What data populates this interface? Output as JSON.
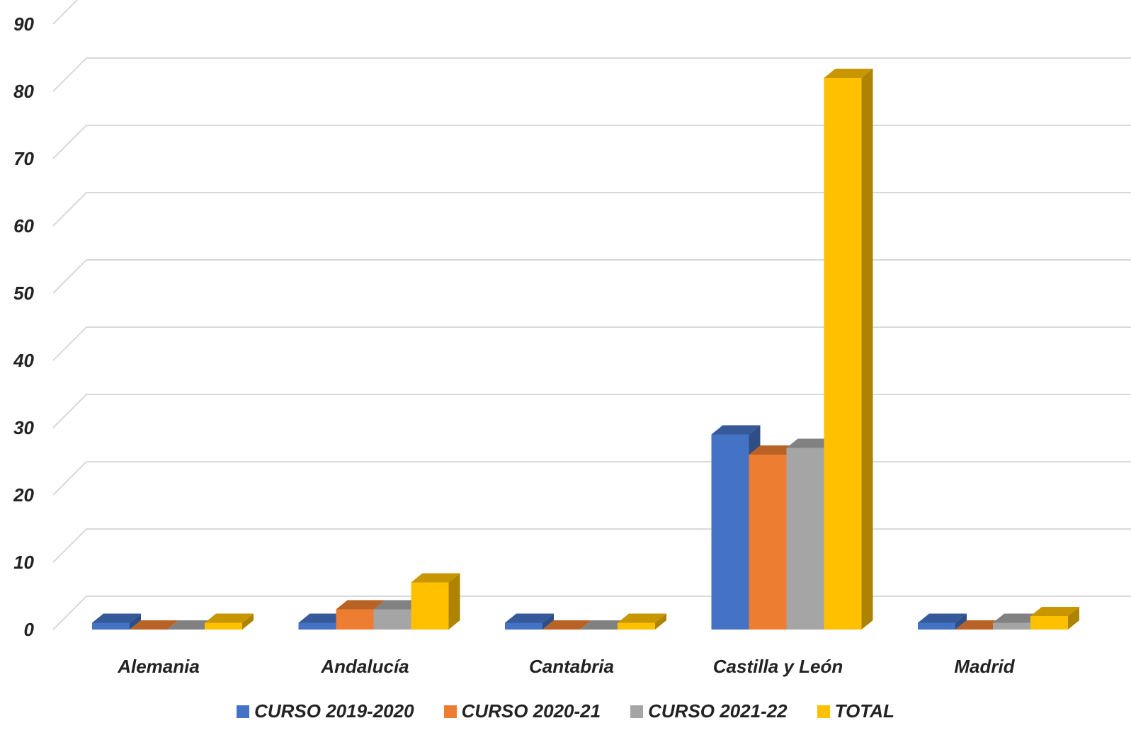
{
  "chart_data": {
    "type": "bar",
    "variant": "3d-clustered-column",
    "title": "",
    "xlabel": "",
    "ylabel": "",
    "ylim": [
      0,
      90
    ],
    "yticks": [
      0,
      10,
      20,
      30,
      40,
      50,
      60,
      70,
      80,
      90
    ],
    "grid": true,
    "legend_position": "bottom",
    "categories": [
      "Alemania",
      "Andalucía",
      "Cantabria",
      "Castilla y León",
      "Madrid"
    ],
    "series": [
      {
        "name": "CURSO 2019-2020",
        "color": "#4472C4",
        "values": [
          1,
          1,
          1,
          29,
          1
        ]
      },
      {
        "name": "CURSO 2020-21",
        "color": "#ED7D31",
        "values": [
          0,
          3,
          0,
          26,
          0
        ]
      },
      {
        "name": "CURSO 2021-22",
        "color": "#A5A5A5",
        "values": [
          0,
          3,
          0,
          27,
          1
        ]
      },
      {
        "name": "TOTAL",
        "color": "#FFC000",
        "values": [
          1,
          7,
          1,
          82,
          2
        ]
      }
    ]
  }
}
